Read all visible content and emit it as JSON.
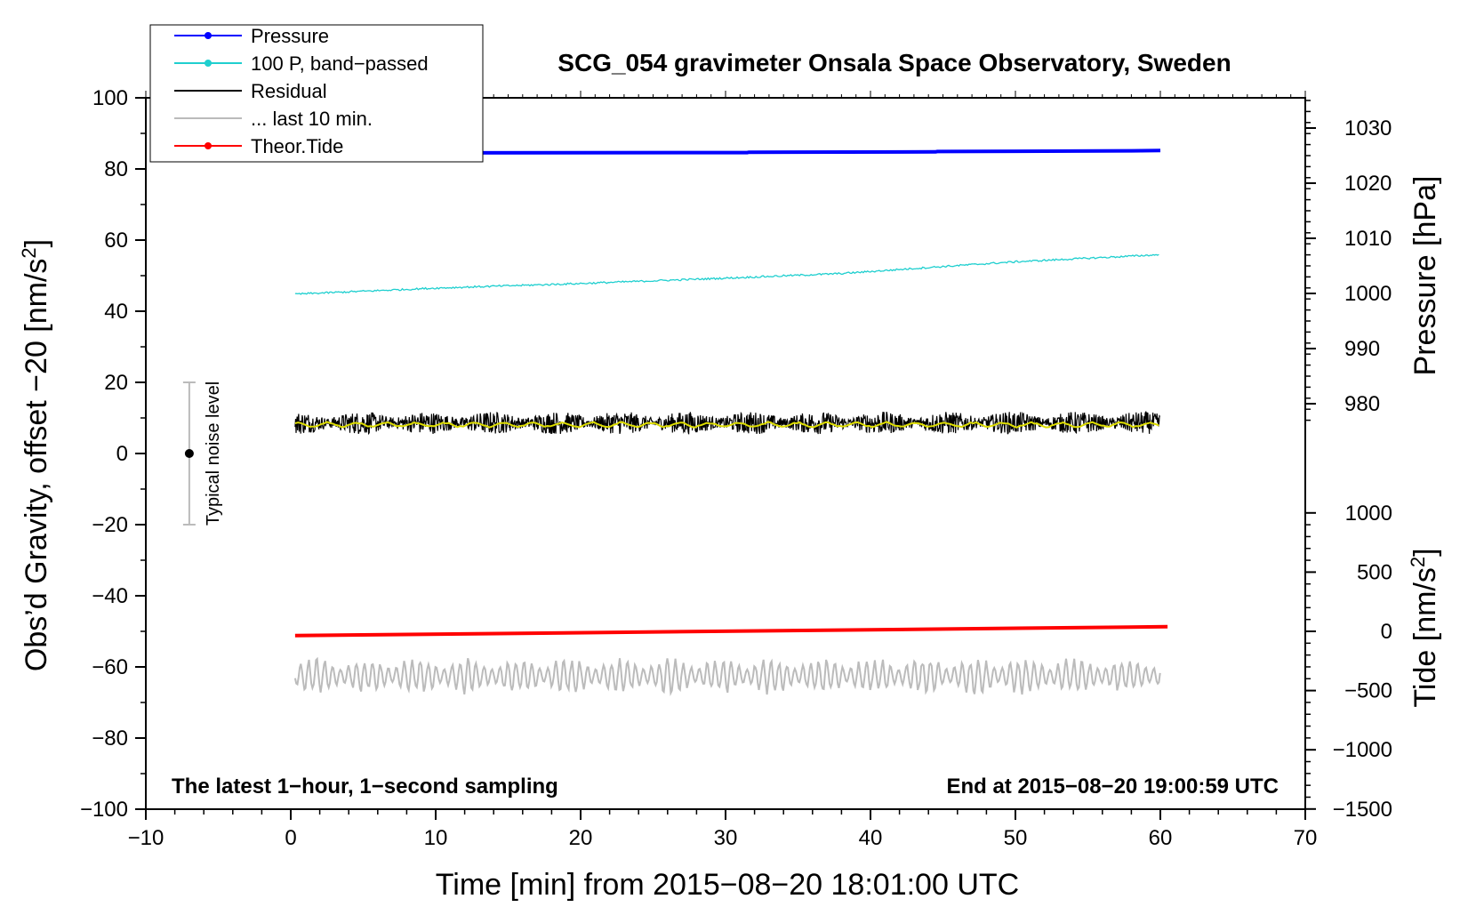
{
  "chart_data": {
    "type": "line",
    "title": "SCG_054 gravimeter Onsala Space Observatory, Sweden",
    "xlabel": "Time [min] from 2015−08−20 18:01:00 UTC",
    "ylabel": "Obs’d Gravity, offset −20 [nm/s",
    "ylabel_sup": "2",
    "ylabel_end": "]",
    "right_pressure_label": "Pressure [hPa]",
    "right_tide_label": "Tide [nm/s",
    "right_tide_sup": "2",
    "right_tide_end": "]",
    "xlim": [
      -10,
      70
    ],
    "ylim": [
      -100,
      100
    ],
    "x_ticks": [
      -10,
      0,
      10,
      20,
      30,
      40,
      50,
      60,
      70
    ],
    "x_tick_labels": [
      "−10",
      "0",
      "10",
      "20",
      "30",
      "40",
      "50",
      "60",
      "70"
    ],
    "y_ticks": [
      -100,
      -80,
      -60,
      -40,
      -20,
      0,
      20,
      40,
      60,
      80,
      100
    ],
    "y_tick_labels": [
      "−100",
      "−80",
      "−60",
      "−40",
      "−20",
      "0",
      "20",
      "40",
      "60",
      "80",
      "100"
    ],
    "pressure_axis": {
      "ticks": [
        980,
        990,
        1000,
        1010,
        1020,
        1030
      ],
      "tick_labels": [
        "980",
        "990",
        "1000",
        "1010",
        "1020",
        "1030"
      ],
      "left_y_at_1000": 45,
      "left_units_per_hpa": 1.55
    },
    "tide_axis": {
      "ticks": [
        -1500,
        -1000,
        -500,
        0,
        500,
        1000
      ],
      "tick_labels": [
        "−1500",
        "−1000",
        "−500",
        "0",
        "500",
        "1000"
      ],
      "left_y_at_0": -50,
      "left_units_per_1000": 33.3
    },
    "series": [
      {
        "name": "Pressure",
        "color": "#0000ff",
        "x": [
          0.3,
          31.5,
          31.6,
          44.5,
          44.6,
          58,
          60
        ],
        "y": [
          84.5,
          84.6,
          84.7,
          84.8,
          84.9,
          85.1,
          85.2
        ]
      },
      {
        "name": "100 P, band−passed",
        "color": "#1fcfcf",
        "x": [
          0.3,
          10,
          20,
          30,
          38,
          44,
          50,
          60
        ],
        "y": [
          44.8,
          46.5,
          47.8,
          49.3,
          50.6,
          52.3,
          53.9,
          55.9
        ]
      },
      {
        "name": "Residual",
        "color": "#000000",
        "x": [
          0.3,
          60
        ],
        "y": [
          8.6,
          8.6
        ]
      },
      {
        "name": "... last 10 min.",
        "color": "#bbbbbb",
        "x": [
          0.3,
          60
        ],
        "y": [
          -62.5,
          -62.5
        ]
      },
      {
        "name": "Theor.Tide",
        "color": "#ff0000",
        "x": [
          0.3,
          60.5
        ],
        "y": [
          -51.2,
          -48.7
        ]
      }
    ],
    "smoothed_residual_color": "#dddd00",
    "noise_bar": {
      "label": "Typical noise level",
      "x": -7,
      "y_center": 0,
      "y_low": -20,
      "y_high": 20
    },
    "annotations": {
      "bottom_left": "The latest 1−hour, 1−second sampling",
      "bottom_right": "End at 2015−08−20 19:00:59 UTC"
    },
    "legend": {
      "placement": "top-left",
      "entries": [
        {
          "label": "Pressure",
          "color": "#0000ff",
          "marker": true
        },
        {
          "label": "100 P, band−passed",
          "color": "#1fcfcf",
          "marker": true
        },
        {
          "label": "Residual",
          "color": "#000000",
          "marker": false
        },
        {
          "label": "... last 10 min.",
          "color": "#bbbbbb",
          "marker": false
        },
        {
          "label": "Theor.Tide",
          "color": "#ff0000",
          "marker": true
        }
      ]
    }
  }
}
